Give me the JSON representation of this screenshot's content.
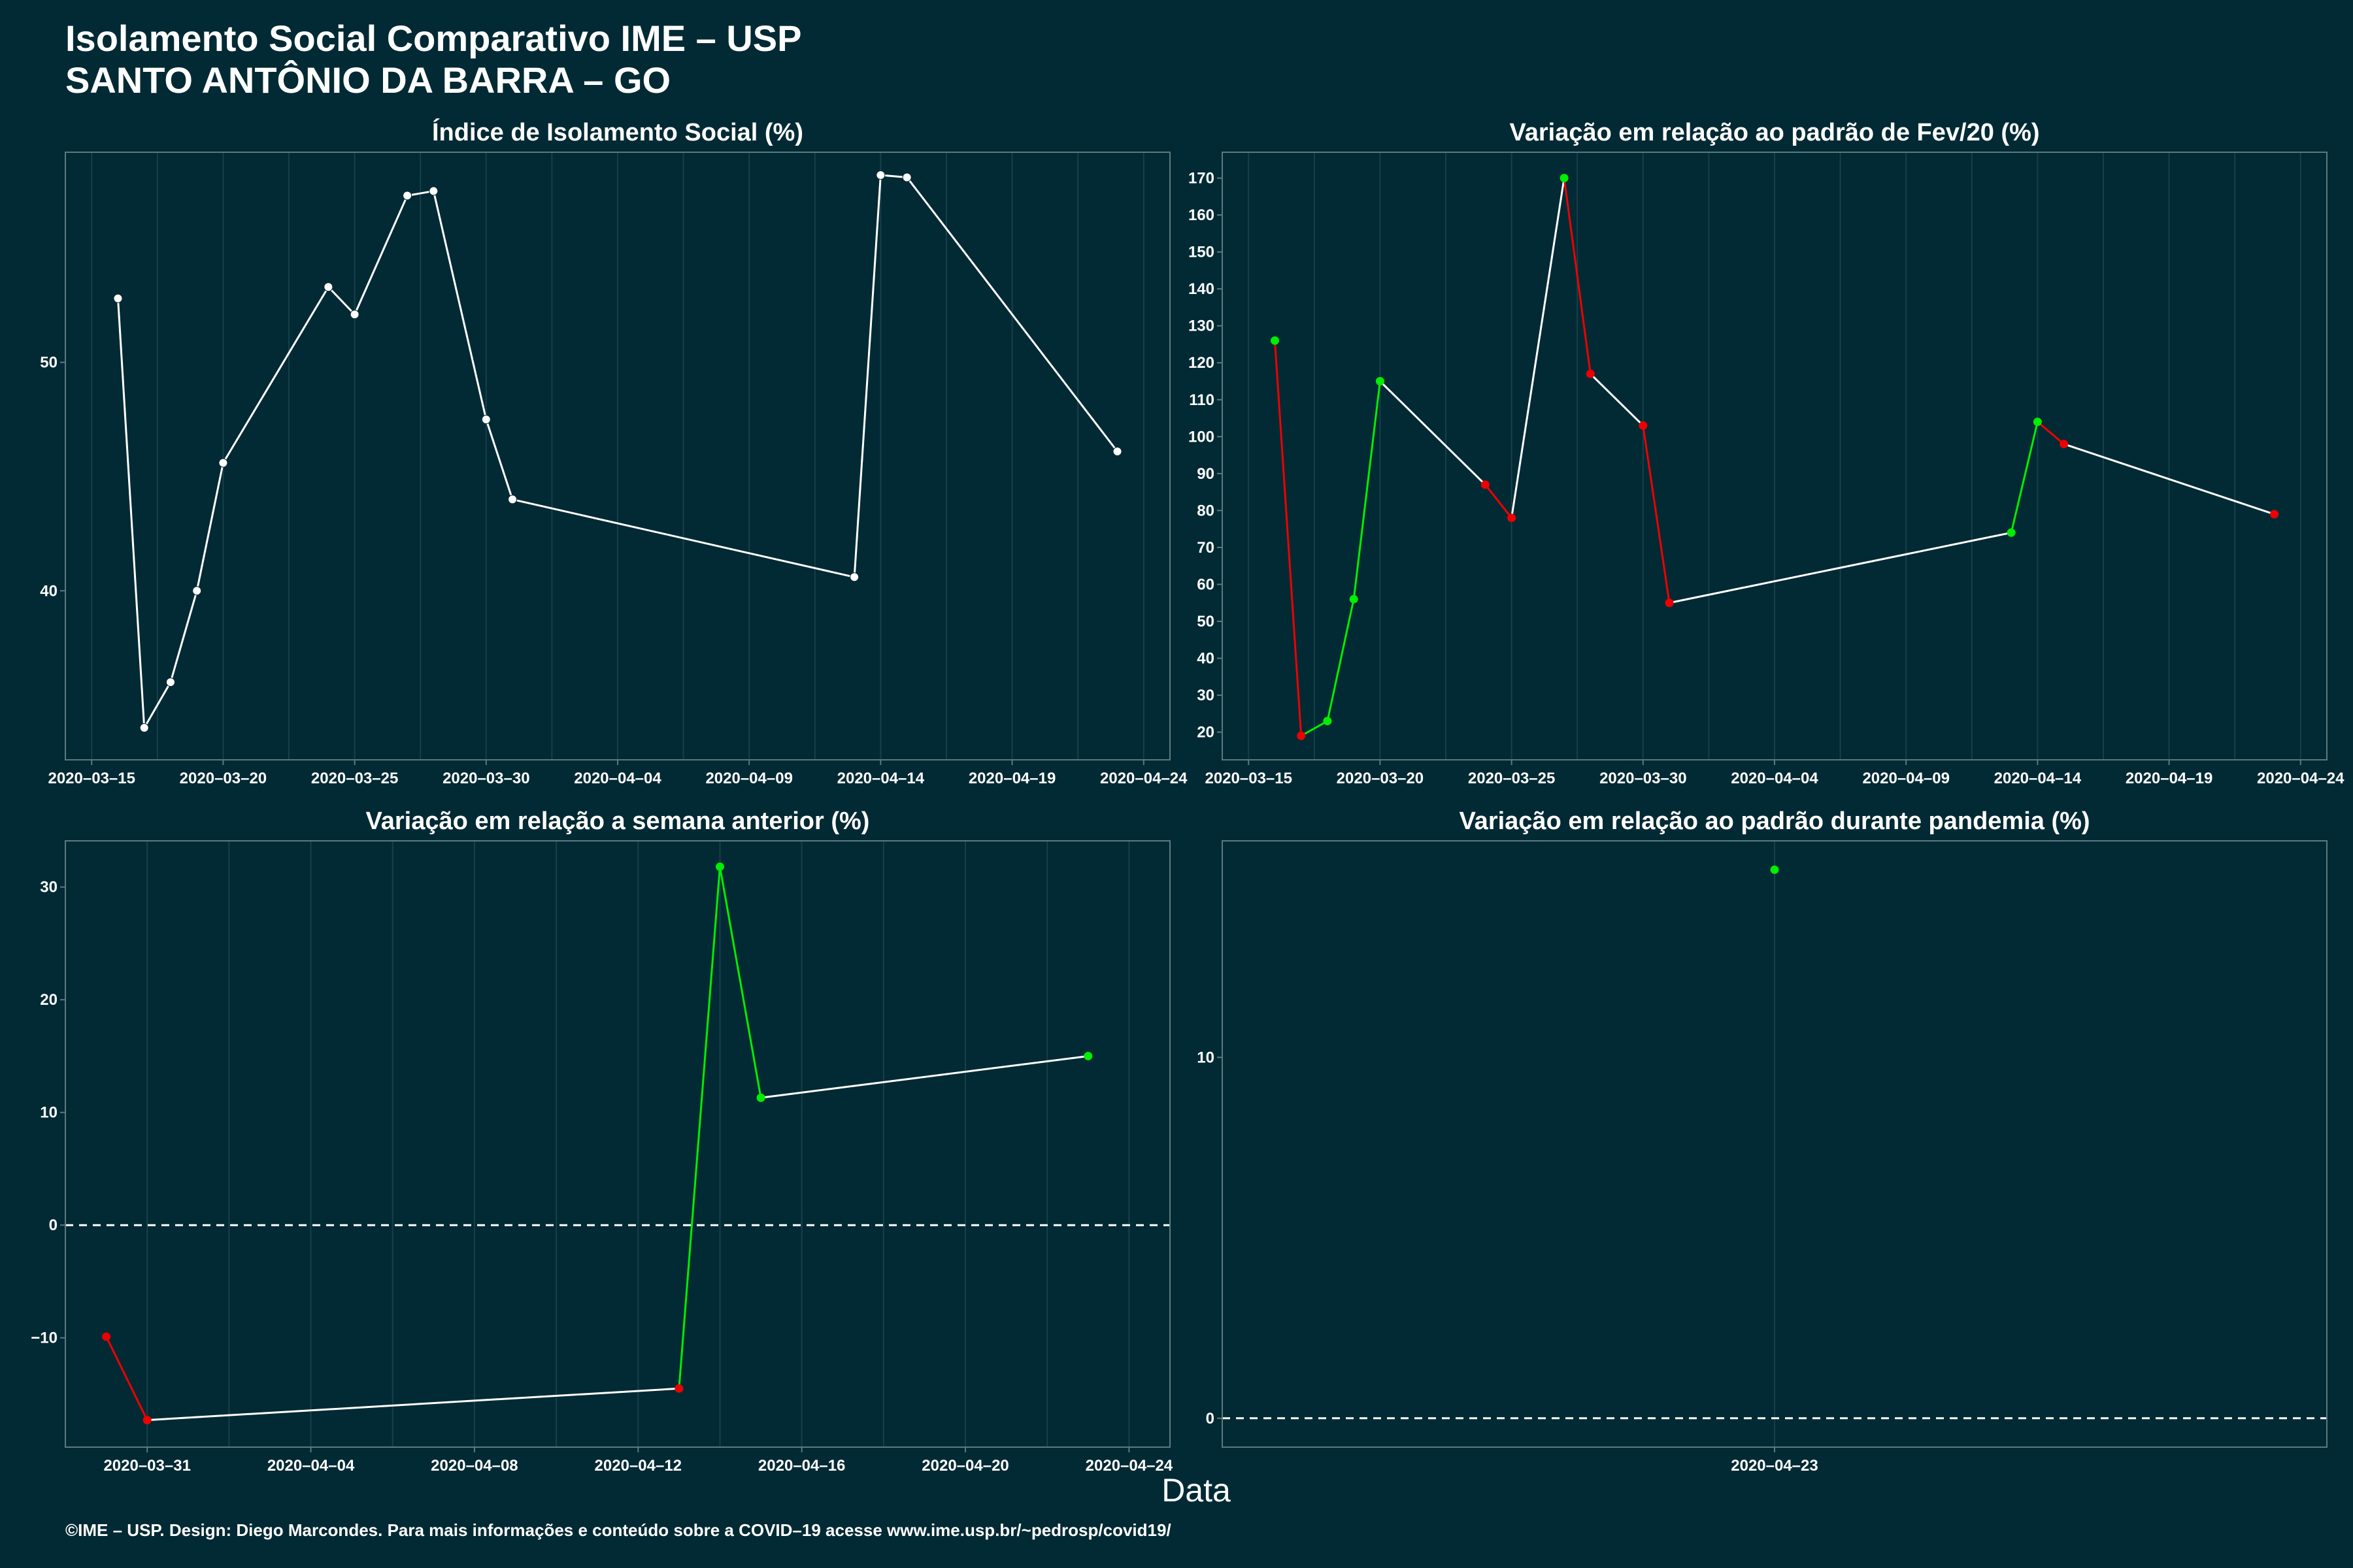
{
  "title": "Isolamento Social Comparativo IME – USP",
  "subtitle": "SANTO ANTÔNIO DA BARRA – GO",
  "xlabel": "Data",
  "caption": "©IME – USP. Design: Diego Marcondes. Para mais informações e conteúdo sobre a COVID–19 acesse www.ime.usp.br/~pedrosp/covid19/",
  "colors": {
    "background": "#022a34",
    "grid": "#17404a",
    "border": "#5c7a80",
    "line": "#ffffff",
    "increase": "#00ee00",
    "decrease": "#ee0000"
  },
  "chart_data": [
    {
      "type": "line",
      "title": "Índice de Isolamento Social (%)",
      "xlabel": "Data",
      "ylabel": "",
      "x_ticks": [
        "2020–03–15",
        "2020–03–20",
        "2020–03–25",
        "2020–03–30",
        "2020–04–04",
        "2020–04–09",
        "2020–04–14",
        "2020–04–19",
        "2020–04–24"
      ],
      "y_ticks": [
        40,
        50
      ],
      "xlim": [
        "2020-03-14",
        "2020-04-25"
      ],
      "ylim": [
        32.6,
        59.2
      ],
      "grid": true,
      "color_mode": "white",
      "points": [
        {
          "x": "2020-03-16",
          "y": 52.8
        },
        {
          "x": "2020-03-17",
          "y": 34.0
        },
        {
          "x": "2020-03-18",
          "y": 36.0
        },
        {
          "x": "2020-03-19",
          "y": 40.0
        },
        {
          "x": "2020-03-20",
          "y": 45.6
        },
        {
          "x": "2020-03-24",
          "y": 53.3
        },
        {
          "x": "2020-03-25",
          "y": 52.1
        },
        {
          "x": "2020-03-27",
          "y": 57.3
        },
        {
          "x": "2020-03-28",
          "y": 57.5
        },
        {
          "x": "2020-03-30",
          "y": 47.5
        },
        {
          "x": "2020-03-31",
          "y": 44.0
        },
        {
          "x": "2020-04-13",
          "y": 40.6
        },
        {
          "x": "2020-04-14",
          "y": 58.2
        },
        {
          "x": "2020-04-15",
          "y": 58.1
        },
        {
          "x": "2020-04-23",
          "y": 46.1
        }
      ]
    },
    {
      "type": "line",
      "title": "Variação em relação ao padrão de Fev/20 (%)",
      "xlabel": "Data",
      "ylabel": "",
      "x_ticks": [
        "2020–03–15",
        "2020–03–20",
        "2020–03–25",
        "2020–03–30",
        "2020–04–04",
        "2020–04–09",
        "2020–04–14",
        "2020–04–19",
        "2020–04–24"
      ],
      "y_ticks": [
        20,
        30,
        40,
        50,
        60,
        70,
        80,
        90,
        100,
        110,
        120,
        130,
        140,
        150,
        160,
        170
      ],
      "xlim": [
        "2020-03-14",
        "2020-04-25"
      ],
      "ylim": [
        12.5,
        177
      ],
      "grid": true,
      "color_mode": "trend",
      "points": [
        {
          "x": "2020-03-16",
          "y": 126
        },
        {
          "x": "2020-03-17",
          "y": 19
        },
        {
          "x": "2020-03-18",
          "y": 23
        },
        {
          "x": "2020-03-19",
          "y": 56
        },
        {
          "x": "2020-03-20",
          "y": 115
        },
        {
          "x": "2020-03-24",
          "y": 87
        },
        {
          "x": "2020-03-25",
          "y": 78
        },
        {
          "x": "2020-03-27",
          "y": 170
        },
        {
          "x": "2020-03-28",
          "y": 117
        },
        {
          "x": "2020-03-30",
          "y": 103
        },
        {
          "x": "2020-03-31",
          "y": 55
        },
        {
          "x": "2020-04-13",
          "y": 74
        },
        {
          "x": "2020-04-14",
          "y": 104
        },
        {
          "x": "2020-04-15",
          "y": 98
        },
        {
          "x": "2020-04-23",
          "y": 79
        }
      ]
    },
    {
      "type": "line",
      "title": "Variação em relação a semana anterior (%)",
      "xlabel": "Data",
      "ylabel": "",
      "x_ticks": [
        "2020–03–31",
        "2020–04–04",
        "2020–04–08",
        "2020–04–12",
        "2020–04–16",
        "2020–04–20",
        "2020–04–24"
      ],
      "y_ticks": [
        -10,
        0,
        10,
        20,
        30
      ],
      "xlim": [
        "2020-03-29",
        "2020-04-25"
      ],
      "ylim": [
        -19.7,
        34.1
      ],
      "grid": true,
      "zero_line": true,
      "color_mode": "sign",
      "points": [
        {
          "x": "2020-03-30",
          "y": -9.9
        },
        {
          "x": "2020-03-31",
          "y": -17.3
        },
        {
          "x": "2020-04-13",
          "y": -14.5
        },
        {
          "x": "2020-04-14",
          "y": 31.8
        },
        {
          "x": "2020-04-15",
          "y": 11.3
        },
        {
          "x": "2020-04-23",
          "y": 15.0
        }
      ]
    },
    {
      "type": "scatter",
      "title": "Variação em relação ao padrão durante pandemia (%)",
      "xlabel": "Data",
      "ylabel": "",
      "x_ticks": [
        "2020–04–23"
      ],
      "y_ticks": [
        0,
        10
      ],
      "xlim": [
        "2020-04-22",
        "2020-04-24"
      ],
      "ylim": [
        -0.8,
        16.0
      ],
      "grid": true,
      "zero_line": true,
      "color_mode": "sign",
      "points": [
        {
          "x": "2020-04-23",
          "y": 15.2
        }
      ]
    }
  ]
}
